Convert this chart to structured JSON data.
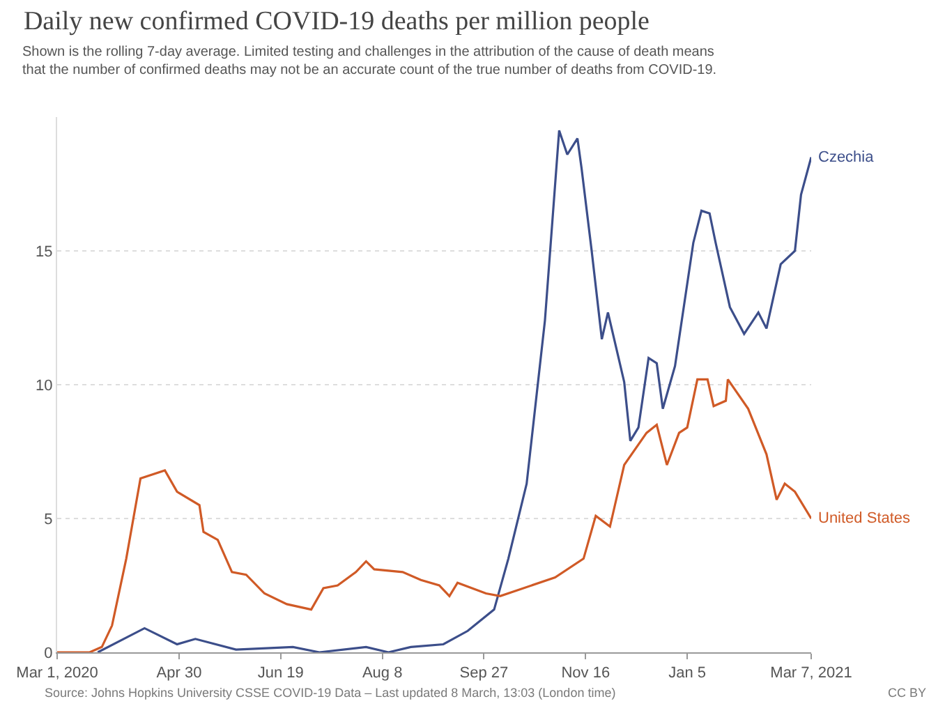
{
  "chart_data": {
    "type": "line",
    "title": "Daily new confirmed COVID-19 deaths per million people",
    "subtitle": "Shown is the rolling 7-day average. Limited testing and challenges in the attribution of the cause of death means\nthat the number of confirmed deaths may not be an accurate count of the true number of deaths from COVID-19.",
    "annotations": [
      "Source: Johns Hopkins University CSSE COVID-19 Data – Last updated 8 March, 13:03 (London time)",
      "CC BY"
    ],
    "xlim": [
      "2020-03-01",
      "2021-03-07"
    ],
    "xticks": [
      {
        "value": "2020-03-01",
        "label": "Mar 1, 2020"
      },
      {
        "value": "2020-04-30",
        "label": "Apr 30"
      },
      {
        "value": "2020-06-19",
        "label": "Jun 19"
      },
      {
        "value": "2020-08-08",
        "label": "Aug 8"
      },
      {
        "value": "2020-09-27",
        "label": "Sep 27"
      },
      {
        "value": "2020-11-16",
        "label": "Nov 16"
      },
      {
        "value": "2021-01-05",
        "label": "Jan 5"
      },
      {
        "value": "2021-03-07",
        "label": "Mar 7, 2021"
      }
    ],
    "ylim": [
      0,
      20
    ],
    "yticks": [
      0,
      5,
      10,
      15
    ],
    "grid": "y",
    "legend": false,
    "marker": "none",
    "line_style": "solid",
    "series": [
      {
        "name": "Czechia",
        "color": "#3c4e8a",
        "x": [
          "2020-03-21",
          "2020-04-13",
          "2020-04-29",
          "2020-05-08",
          "2020-05-28",
          "2020-06-25",
          "2020-07-08",
          "2020-07-31",
          "2020-08-11",
          "2020-08-22",
          "2020-09-07",
          "2020-09-19",
          "2020-10-02",
          "2020-10-09",
          "2020-10-18",
          "2020-10-27",
          "2020-11-03",
          "2020-11-07",
          "2020-11-12",
          "2020-11-14",
          "2020-11-19",
          "2020-11-24",
          "2020-11-27",
          "2020-12-05",
          "2020-12-08",
          "2020-12-12",
          "2020-12-17",
          "2020-12-21",
          "2020-12-24",
          "2020-12-30",
          "2021-01-08",
          "2021-01-12",
          "2021-01-16",
          "2021-01-19",
          "2021-01-26",
          "2021-02-02",
          "2021-02-09",
          "2021-02-13",
          "2021-02-20",
          "2021-02-27",
          "2021-03-02",
          "2021-03-07"
        ],
        "values": [
          0,
          0.9,
          0.3,
          0.5,
          0.1,
          0.2,
          0.0,
          0.2,
          0.0,
          0.2,
          0.3,
          0.8,
          1.6,
          3.5,
          6.3,
          12.4,
          19.5,
          18.6,
          19.2,
          18.1,
          15.0,
          11.7,
          12.7,
          10.1,
          7.9,
          8.4,
          11.0,
          10.8,
          9.1,
          10.7,
          15.3,
          16.5,
          16.4,
          15.3,
          12.9,
          11.9,
          12.7,
          12.1,
          14.5,
          15.0,
          17.1,
          18.5
        ]
      },
      {
        "name": "United States",
        "color": "#d05a26",
        "x": [
          "2020-03-01",
          "2020-03-17",
          "2020-03-23",
          "2020-03-28",
          "2020-04-04",
          "2020-04-11",
          "2020-04-23",
          "2020-04-29",
          "2020-05-10",
          "2020-05-12",
          "2020-05-19",
          "2020-05-26",
          "2020-06-02",
          "2020-06-11",
          "2020-06-22",
          "2020-07-04",
          "2020-07-10",
          "2020-07-17",
          "2020-07-26",
          "2020-07-31",
          "2020-08-04",
          "2020-08-18",
          "2020-08-27",
          "2020-09-05",
          "2020-09-10",
          "2020-09-14",
          "2020-09-28",
          "2020-10-05",
          "2020-11-01",
          "2020-11-15",
          "2020-11-21",
          "2020-11-28",
          "2020-12-05",
          "2020-12-16",
          "2020-12-21",
          "2020-12-26",
          "2021-01-01",
          "2021-01-05",
          "2021-01-10",
          "2021-01-15",
          "2021-01-18",
          "2021-01-24",
          "2021-01-25",
          "2021-02-04",
          "2021-02-13",
          "2021-02-18",
          "2021-02-22",
          "2021-02-27",
          "2021-03-07"
        ],
        "values": [
          0,
          0,
          0.2,
          1.0,
          3.5,
          6.5,
          6.8,
          6.0,
          5.5,
          4.5,
          4.2,
          3.0,
          2.9,
          2.2,
          1.8,
          1.6,
          2.4,
          2.5,
          3.0,
          3.4,
          3.1,
          3.0,
          2.7,
          2.5,
          2.1,
          2.6,
          2.2,
          2.1,
          2.8,
          3.5,
          5.1,
          4.7,
          7.0,
          8.2,
          8.5,
          7.0,
          8.2,
          8.4,
          10.2,
          10.2,
          9.2,
          9.4,
          10.2,
          9.1,
          7.4,
          5.7,
          6.3,
          6.0,
          5.0
        ]
      }
    ]
  }
}
